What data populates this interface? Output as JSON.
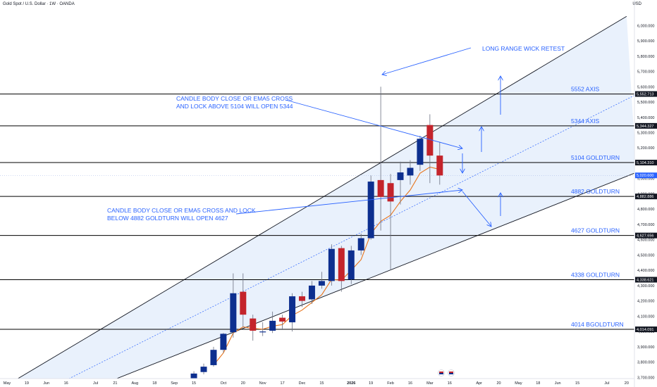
{
  "header": {
    "title": "Gold Spot / U.S. Dollar · 1W · OANDA",
    "currency": "USD"
  },
  "colors": {
    "bull": "#0d2f8f",
    "bear": "#c4242b",
    "ema": "#e8741c",
    "annotation": "#2962ff",
    "channel_fill": "#e9f1fc",
    "level_line": "#000000"
  },
  "chart_data": {
    "type": "candlestick",
    "interval": "1W",
    "ylim": [
      3650,
      6060
    ],
    "y_ticks": [
      3700,
      3800,
      3900,
      4000,
      4100,
      4200,
      4300,
      4400,
      4500,
      4600,
      4700,
      4800,
      4900,
      5000,
      5100,
      5200,
      5300,
      5400,
      5500,
      5600,
      5700,
      5800,
      5900,
      6000
    ],
    "y_tick_labels": [
      "3,700.000",
      "3,800.000",
      "3,900.000",
      "4,000.000",
      "4,100.000",
      "4,200.000",
      "4,300.000",
      "4,400.000",
      "4,500.000",
      "4,600.000",
      "4,700.000",
      "4,800.000",
      "4,900.000",
      "5,000.000",
      "5,100.000",
      "5,200.000",
      "5,300.000",
      "5,400.000",
      "5,500.000",
      "5,600.000",
      "5,700.000",
      "5,800.000",
      "5,900.000",
      "6,000.000"
    ],
    "x_ticks": [
      {
        "week": 0,
        "label": "May"
      },
      {
        "week": 2,
        "label": "19"
      },
      {
        "week": 4,
        "label": "Jun"
      },
      {
        "week": 6,
        "label": "16"
      },
      {
        "week": 9,
        "label": "Jul"
      },
      {
        "week": 11,
        "label": "21"
      },
      {
        "week": 13,
        "label": "Aug"
      },
      {
        "week": 15,
        "label": "18"
      },
      {
        "week": 17,
        "label": "Sep"
      },
      {
        "week": 19,
        "label": "15"
      },
      {
        "week": 22,
        "label": "Oct"
      },
      {
        "week": 24,
        "label": "20"
      },
      {
        "week": 26,
        "label": "Nov"
      },
      {
        "week": 28,
        "label": "17"
      },
      {
        "week": 30,
        "label": "Dec"
      },
      {
        "week": 32,
        "label": "15"
      },
      {
        "week": 35,
        "label": "2026"
      },
      {
        "week": 37,
        "label": "19"
      },
      {
        "week": 39,
        "label": "Feb"
      },
      {
        "week": 41,
        "label": "16"
      },
      {
        "week": 43,
        "label": "Mar"
      },
      {
        "week": 45,
        "label": "16"
      },
      {
        "week": 48,
        "label": "Apr"
      },
      {
        "week": 50,
        "label": "20"
      },
      {
        "week": 52,
        "label": "May"
      },
      {
        "week": 54,
        "label": "18"
      },
      {
        "week": 56,
        "label": "Jun"
      },
      {
        "week": 58,
        "label": "15"
      },
      {
        "week": 61,
        "label": "Jul"
      },
      {
        "week": 63,
        "label": "20"
      }
    ],
    "candles": [
      {
        "week": 18,
        "o": 3640,
        "h": 3680,
        "l": 3620,
        "c": 3670
      },
      {
        "week": 19,
        "o": 3660,
        "h": 3740,
        "l": 3640,
        "c": 3725
      },
      {
        "week": 20,
        "o": 3735,
        "h": 3790,
        "l": 3720,
        "c": 3770
      },
      {
        "week": 21,
        "o": 3780,
        "h": 3900,
        "l": 3770,
        "c": 3880
      },
      {
        "week": 22,
        "o": 3880,
        "h": 3990,
        "l": 3860,
        "c": 3985
      },
      {
        "week": 23,
        "o": 3995,
        "h": 4380,
        "l": 3960,
        "c": 4250
      },
      {
        "week": 24,
        "o": 4260,
        "h": 4380,
        "l": 4030,
        "c": 4110
      },
      {
        "week": 25,
        "o": 4085,
        "h": 4110,
        "l": 3940,
        "c": 4005
      },
      {
        "week": 26,
        "o": 4000,
        "h": 4060,
        "l": 3970,
        "c": 4000
      },
      {
        "week": 27,
        "o": 4005,
        "h": 4130,
        "l": 3990,
        "c": 4070
      },
      {
        "week": 28,
        "o": 4090,
        "h": 4110,
        "l": 4010,
        "c": 4065
      },
      {
        "week": 29,
        "o": 4060,
        "h": 4250,
        "l": 4000,
        "c": 4230
      },
      {
        "week": 30,
        "o": 4230,
        "h": 4260,
        "l": 4160,
        "c": 4200
      },
      {
        "week": 31,
        "o": 4210,
        "h": 4330,
        "l": 4180,
        "c": 4300
      },
      {
        "week": 32,
        "o": 4300,
        "h": 4390,
        "l": 4280,
        "c": 4330
      },
      {
        "week": 33,
        "o": 4330,
        "h": 4570,
        "l": 4300,
        "c": 4540
      },
      {
        "week": 34,
        "o": 4545,
        "h": 4560,
        "l": 4260,
        "c": 4330
      },
      {
        "week": 35,
        "o": 4340,
        "h": 4560,
        "l": 4310,
        "c": 4530
      },
      {
        "week": 36,
        "o": 4530,
        "h": 4640,
        "l": 4500,
        "c": 4610
      },
      {
        "week": 37,
        "o": 4610,
        "h": 5020,
        "l": 4600,
        "c": 4980
      },
      {
        "week": 38,
        "o": 4990,
        "h": 5600,
        "l": 4660,
        "c": 4880
      },
      {
        "week": 39,
        "o": 4970,
        "h": 5030,
        "l": 4400,
        "c": 4850
      },
      {
        "week": 40,
        "o": 4990,
        "h": 5110,
        "l": 4830,
        "c": 5040
      },
      {
        "week": 41,
        "o": 5020,
        "h": 5120,
        "l": 4960,
        "c": 5070
      },
      {
        "week": 42,
        "o": 5090,
        "h": 5280,
        "l": 5050,
        "c": 5260
      },
      {
        "week": 43,
        "o": 5350,
        "h": 5420,
        "l": 4970,
        "c": 5150
      },
      {
        "week": 44,
        "o": 5150,
        "h": 5240,
        "l": 4960,
        "c": 5020
      }
    ],
    "ema5": [
      {
        "week": 21,
        "v": 3780
      },
      {
        "week": 22,
        "v": 3860
      },
      {
        "week": 23,
        "v": 3990
      },
      {
        "week": 24,
        "v": 4030
      },
      {
        "week": 25,
        "v": 4020
      },
      {
        "week": 26,
        "v": 4015
      },
      {
        "week": 27,
        "v": 4035
      },
      {
        "week": 28,
        "v": 4045
      },
      {
        "week": 29,
        "v": 4105
      },
      {
        "week": 30,
        "v": 4140
      },
      {
        "week": 31,
        "v": 4190
      },
      {
        "week": 32,
        "v": 4240
      },
      {
        "week": 33,
        "v": 4340
      },
      {
        "week": 34,
        "v": 4335
      },
      {
        "week": 35,
        "v": 4400
      },
      {
        "week": 36,
        "v": 4470
      },
      {
        "week": 37,
        "v": 4640
      },
      {
        "week": 38,
        "v": 4720
      },
      {
        "week": 39,
        "v": 4760
      },
      {
        "week": 40,
        "v": 4850
      },
      {
        "week": 41,
        "v": 4925
      },
      {
        "week": 42,
        "v": 5035
      },
      {
        "week": 43,
        "v": 5075
      },
      {
        "week": 44,
        "v": 5060
      }
    ],
    "levels": [
      {
        "value": 5552.713,
        "price_label": "5,552.713",
        "text": "5552 AXIS"
      },
      {
        "value": 5344.327,
        "price_label": "5,344.327",
        "text": "5344 AXIS"
      },
      {
        "value": 5104.31,
        "price_label": "5,104.310",
        "text": "5104 GOLDTURN"
      },
      {
        "value": 4882.886,
        "price_label": "4,882.886",
        "text": "4882 GOLDTURN"
      },
      {
        "value": 4627.656,
        "price_label": "4,627.656",
        "text": "4627 GOLDTURN"
      },
      {
        "value": 4338.621,
        "price_label": "4,338.621",
        "text": "4338 GOLDTURN"
      },
      {
        "value": 4014.091,
        "price_label": "4,014.091",
        "text": "4014 BGOLDTURN"
      }
    ],
    "last_price": {
      "value": 5020.6,
      "label": "5,020.600"
    },
    "channel": {
      "upper": [
        {
          "week": 0,
          "v": 3650
        },
        {
          "week": 63,
          "v": 6060
        }
      ],
      "lower": [
        {
          "week": 9.5,
          "v": 3650
        },
        {
          "week": 64,
          "v": 5040
        }
      ],
      "mid": [
        {
          "week": 5,
          "v": 3650
        },
        {
          "week": 64,
          "v": 5550
        }
      ]
    },
    "annotations": [
      {
        "text": "LONG RANGE WICK RETEST"
      },
      {
        "text": "CANDLE BODY CLOSE OR EMA5 CROSS",
        "text2": "AND LOCK ABOVE 5104 WILL OPEN 5344"
      },
      {
        "text": "CANDLE BODY CLOSE OR EMA5 CROSS AND LOCK",
        "text2": "BELOW 4882 GOLDTURN WILL OPEN 4627"
      }
    ]
  }
}
